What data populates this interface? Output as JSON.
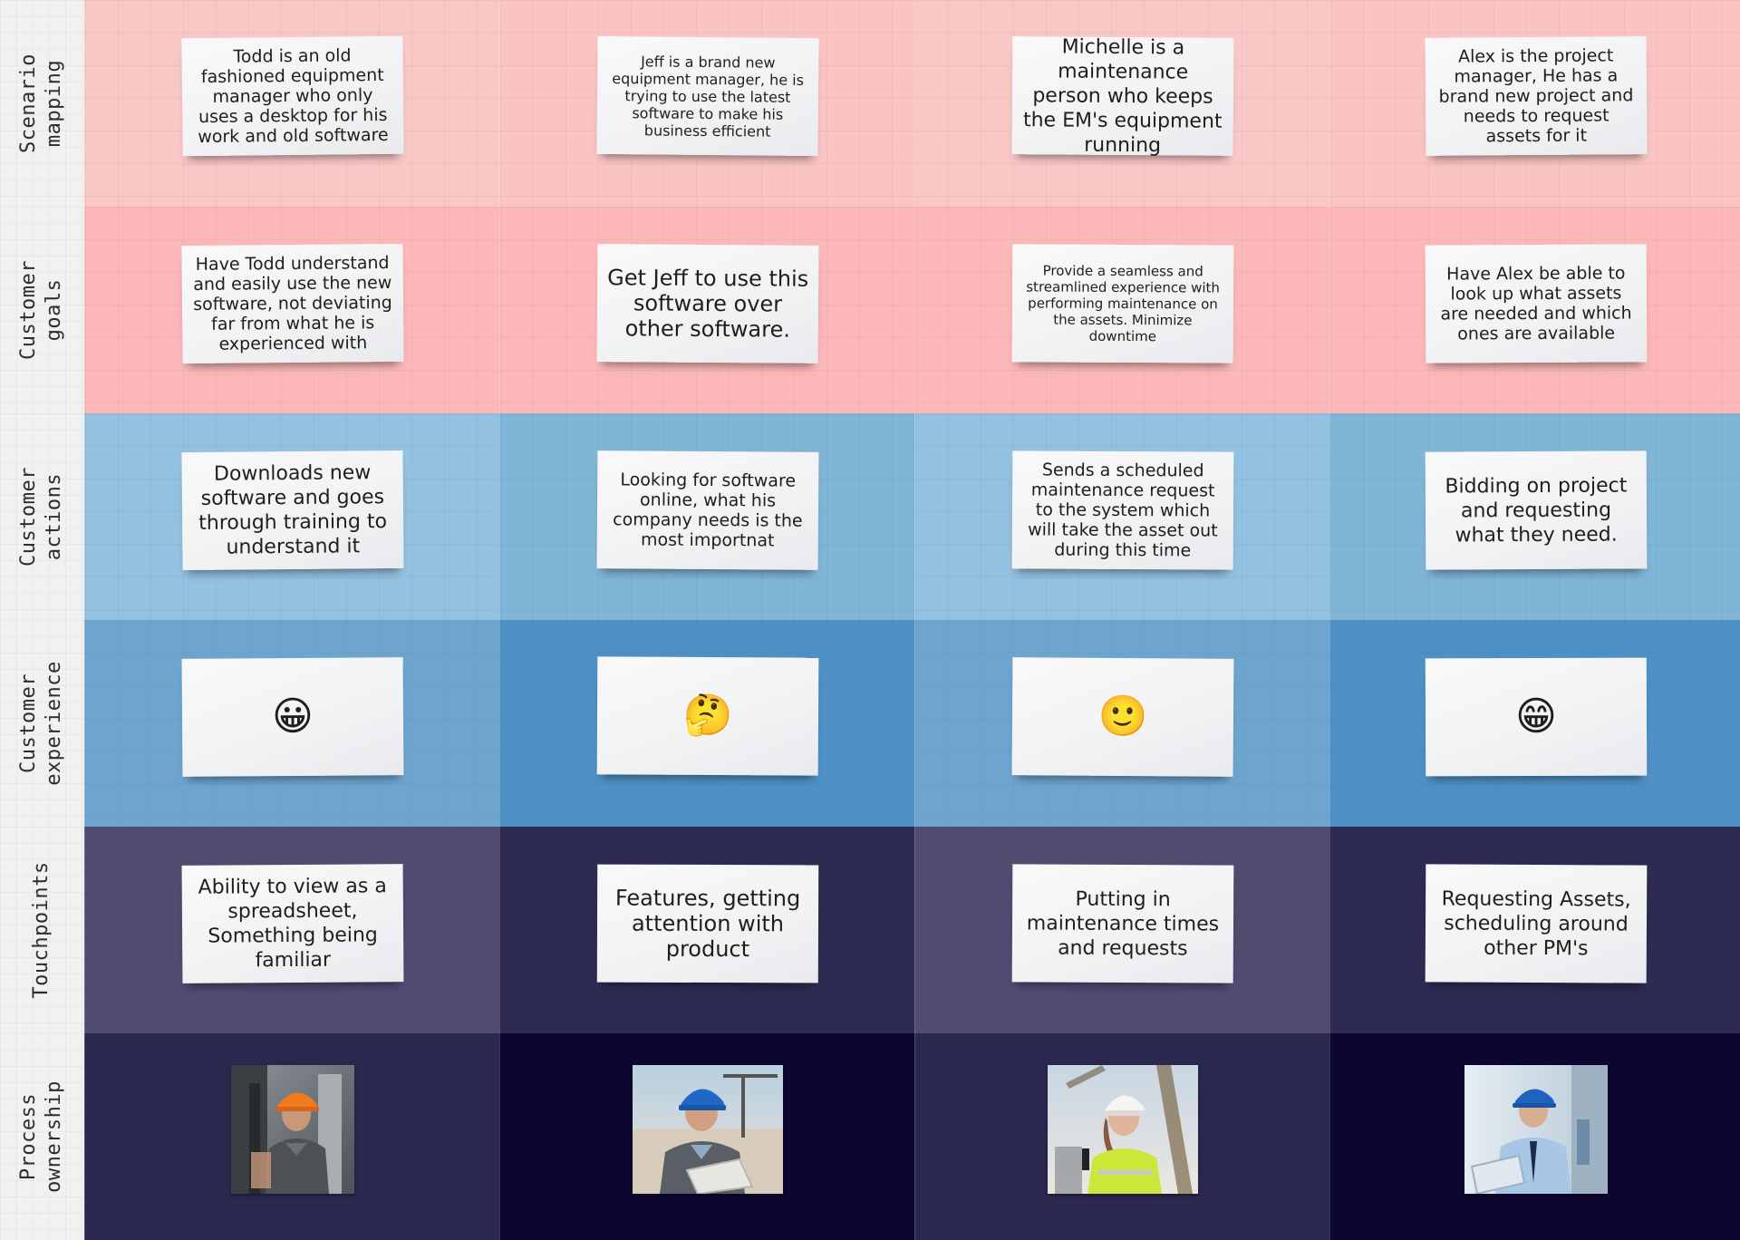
{
  "rows": [
    {
      "label": "Scenario\nmapping"
    },
    {
      "label": "Customer\ngoals"
    },
    {
      "label": "Customer\nactions"
    },
    {
      "label": "Customer\nexperience"
    },
    {
      "label": "Touchpoints"
    },
    {
      "label": "Process\nownership"
    }
  ],
  "scenario": [
    "Todd is an old fashioned equipment manager who only uses a desktop for his work and old software",
    "Jeff is a brand new equipment manager, he is trying to use the latest software to make his business efficient",
    "Michelle is a maintenance person who keeps the EM's equipment running",
    "Alex is the project manager, He has a brand new project and needs to request assets for it"
  ],
  "goals": [
    "Have Todd understand and easily use the new software, not deviating far from what he is experienced with",
    "Get Jeff to use this software over other software.",
    "Provide a seamless and streamlined experience with performing maintenance on the assets. Minimize downtime",
    "Have Alex be able to look up what assets are needed and which ones are available"
  ],
  "actions": [
    "Downloads new software and goes through training to understand it",
    "Looking for software online, what his company needs is the most importnat",
    "Sends a scheduled maintenance request to the system which will take the asset out during this time",
    "Bidding on project and requesting what they need."
  ],
  "experience": [
    "😀",
    "🤔",
    "🙂",
    "😁"
  ],
  "touchpoints": [
    "Ability to view as a spreadsheet, Something being familiar",
    "Features, getting attention with product",
    "Putting in maintenance times and requests",
    "Requesting Assets, scheduling around other PM's"
  ],
  "colors": {
    "scenario": [
      "#f9c7c6",
      "#f9c4c3",
      "#f9c7c6",
      "#f9c4c3"
    ],
    "goals": [
      "#fcb8b8",
      "#fcb8b8",
      "#fcb8b8",
      "#fcb8b8"
    ],
    "actions": [
      "#93c1e0",
      "#80b5d8",
      "#93c1e0",
      "#80b5d8"
    ],
    "experience": [
      "#6ea5cf",
      "#4f91c5",
      "#6ea5cf",
      "#4f91c5"
    ],
    "touchpoints": [
      "#514b70",
      "#2e2b52",
      "#514b70",
      "#2e2b52"
    ],
    "ownership": [
      "#2b284f",
      "#0c0630",
      "#2b284f",
      "#0c0630"
    ]
  },
  "photos": [
    "worker-orange-hardhat",
    "worker-blue-hardhat-tablet",
    "woman-white-hardhat-radio",
    "manager-blue-hardhat-blueprints"
  ]
}
